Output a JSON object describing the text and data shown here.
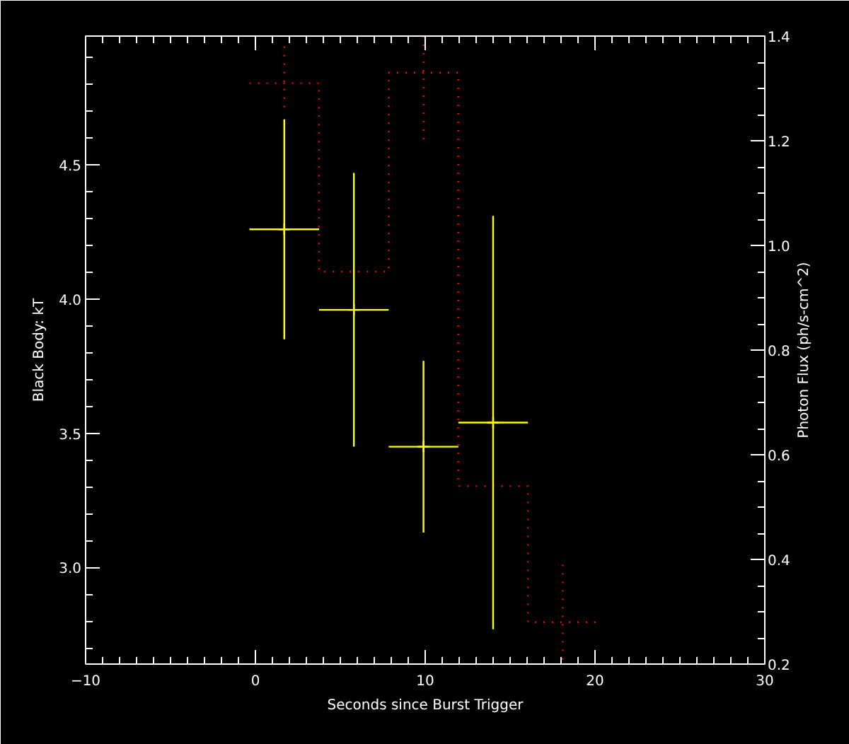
{
  "chart_data": {
    "type": "scatter",
    "xlabel": "Seconds since Burst Trigger",
    "ylabel": "Black Body: kT",
    "y2label": "Photon Flux (ph/s-cm^2)",
    "xlim": [
      -10,
      30
    ],
    "xticks": [
      -10,
      0,
      10,
      20,
      30
    ],
    "ylim": [
      2.64,
      4.98
    ],
    "yticks": [
      {
        "value": 3.0,
        "label": "3.0"
      },
      3.5,
      {
        "value": 4.0,
        "label": "4.0"
      },
      4.5
    ],
    "y2lim": [
      0.2,
      1.4
    ],
    "y2ticks": [
      0.2,
      0.4,
      0.6,
      0.8,
      {
        "value": 1.0,
        "label": "1.0"
      },
      1.2,
      1.4
    ],
    "grid": false,
    "series": [
      {
        "type": "step",
        "axis": "y2",
        "color": "#ff0000",
        "line_style": "dotted",
        "x": [
          -0.35,
          1.7,
          5.8,
          9.9,
          14.0,
          18.1,
          20.15
        ],
        "values": [
          1.31,
          1.31,
          0.95,
          1.33,
          0.54,
          0.28,
          0.28
        ],
        "errors": [
          null,
          [
            1.25,
            1.38
          ],
          null,
          [
            1.2,
            1.4
          ],
          null,
          [
            0.2,
            0.39
          ],
          null
        ]
      },
      {
        "color": "#ffff00",
        "marker": "cross",
        "x": [
          1.7,
          5.8,
          9.9,
          14.0
        ],
        "values": [
          4.26,
          3.96,
          3.45,
          3.54
        ],
        "errors": [
          0.41,
          0.51,
          0.32,
          0.77
        ],
        "xerrors": [
          2.05,
          2.05,
          2.05,
          2.05
        ]
      }
    ]
  }
}
